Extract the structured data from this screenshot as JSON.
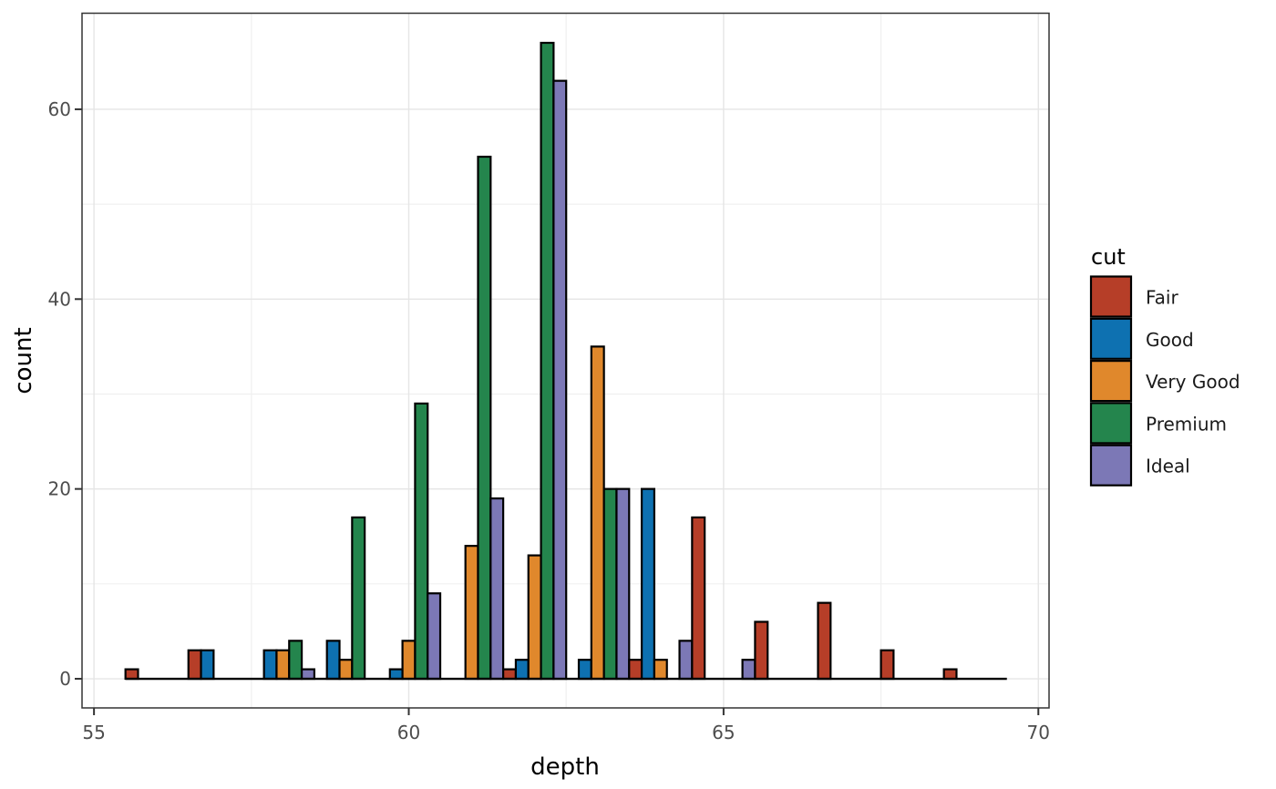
{
  "chart_data": {
    "type": "bar",
    "subtype": "dodged-histogram",
    "title": "",
    "xlabel": "depth",
    "ylabel": "count",
    "legend": {
      "title": "cut",
      "position": "right",
      "entries": [
        "Fair",
        "Good",
        "Very Good",
        "Premium",
        "Ideal"
      ]
    },
    "x_ticks": [
      55,
      60,
      65,
      70
    ],
    "x_minor_gridlines": [
      57.5,
      62.5,
      67.5
    ],
    "y_ticks": [
      0,
      20,
      40,
      60
    ],
    "y_minor_gridlines": [
      10,
      30,
      50
    ],
    "xlim": [
      54.81,
      70.17
    ],
    "ylim": [
      -3.07,
      70.12
    ],
    "bin_width": 1,
    "bin_centers": [
      56,
      57,
      58,
      59,
      60,
      61,
      62,
      63,
      64,
      65,
      66,
      67,
      68,
      69
    ],
    "baseline_extent": [
      55.5,
      69.5
    ],
    "series": [
      {
        "name": "Fair",
        "color": "#b63e28",
        "values": [
          1,
          3,
          0,
          0,
          0,
          0,
          1,
          0,
          2,
          17,
          6,
          8,
          3,
          1
        ]
      },
      {
        "name": "Good",
        "color": "#0e71b1",
        "values": [
          0,
          3,
          3,
          4,
          1,
          0,
          2,
          2,
          20,
          0,
          0,
          0,
          0,
          0
        ]
      },
      {
        "name": "Very Good",
        "color": "#e0882c",
        "values": [
          0,
          0,
          3,
          2,
          4,
          14,
          13,
          35,
          2,
          0,
          0,
          0,
          0,
          0
        ]
      },
      {
        "name": "Premium",
        "color": "#24854d",
        "values": [
          0,
          0,
          4,
          17,
          29,
          55,
          67,
          20,
          0,
          0,
          0,
          0,
          0,
          0
        ]
      },
      {
        "name": "Ideal",
        "color": "#7c78b6",
        "values": [
          0,
          0,
          1,
          0,
          9,
          19,
          63,
          20,
          4,
          2,
          0,
          0,
          0,
          0
        ]
      }
    ],
    "theme": {
      "background": "#ffffff",
      "panel_border": "#333333",
      "grid_major": "#e5e5e5",
      "grid_minor": "#f0f0f0",
      "bar_outline": "#000000",
      "tick_mark_color": "#333333",
      "tick_label_color": "#4d4d4d",
      "axis_title_color": "#000000",
      "legend_text_color": "#1a1a1a"
    },
    "grid": "on"
  }
}
